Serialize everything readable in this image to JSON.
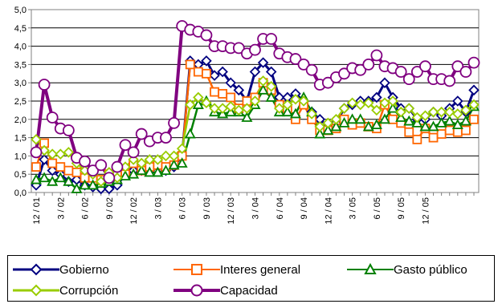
{
  "chart_data": {
    "type": "line",
    "title": "",
    "xlabel": "",
    "ylabel": "",
    "ylim": [
      0,
      5
    ],
    "yticks": [
      "0,0",
      "0,5",
      "1,0",
      "1,5",
      "2,0",
      "2,5",
      "3,0",
      "3,5",
      "4,0",
      "4,5",
      "5,0"
    ],
    "x_tick_labels": [
      "12 / 01",
      "3 / 02",
      "6 / 02",
      "9 / 02",
      "12 / 02",
      "3 / 03",
      "6 / 03",
      "9 / 03",
      "12 / 03",
      "3 / 04",
      "6 / 04",
      "9 / 04",
      "12 / 04",
      "3 / 05",
      "6 / 05",
      "9 / 05",
      "12 / 05"
    ],
    "grid": "horizontal",
    "legend_position": "bottom",
    "series": [
      {
        "name": "Gobierno",
        "color": "#000080",
        "marker": "diamond",
        "values": [
          0.2,
          0.9,
          0.6,
          0.5,
          0.3,
          0.35,
          0.2,
          0.15,
          0.1,
          0.1,
          0.2,
          0.5,
          0.6,
          0.6,
          0.6,
          0.7,
          0.6,
          0.7,
          1.0,
          3.6,
          3.5,
          3.6,
          3.2,
          3.3,
          3.0,
          2.8,
          2.5,
          3.3,
          3.55,
          3.3,
          2.6,
          2.6,
          2.7,
          2.5,
          2.2,
          2.0,
          1.8,
          1.9,
          2.3,
          2.4,
          2.5,
          2.5,
          2.6,
          3.0,
          2.6,
          2.3,
          2.3,
          2.0,
          2.0,
          2.2,
          2.1,
          2.3,
          2.5,
          2.2,
          2.8
        ]
      },
      {
        "name": "Interes general",
        "color": "#FF6600",
        "marker": "square",
        "values": [
          0.7,
          1.35,
          0.8,
          0.7,
          0.6,
          0.55,
          0.4,
          0.4,
          0.35,
          0.5,
          0.5,
          0.5,
          0.8,
          0.6,
          0.7,
          0.75,
          0.7,
          0.75,
          1.0,
          3.5,
          3.3,
          3.25,
          2.75,
          2.7,
          2.6,
          2.3,
          2.5,
          2.6,
          3.0,
          2.8,
          2.4,
          2.3,
          2.0,
          2.4,
          2.0,
          1.7,
          1.7,
          1.75,
          2.0,
          1.85,
          1.9,
          1.8,
          1.75,
          2.4,
          2.0,
          1.9,
          1.65,
          1.45,
          1.75,
          1.5,
          1.6,
          1.7,
          1.65,
          1.7,
          2.0
        ]
      },
      {
        "name": "Gasto público",
        "color": "#008000",
        "marker": "triangle",
        "values": [
          0.35,
          0.4,
          0.3,
          0.4,
          0.3,
          0.1,
          0.2,
          0.2,
          0.25,
          0.3,
          0.35,
          0.45,
          0.5,
          0.6,
          0.55,
          0.55,
          0.6,
          0.75,
          0.8,
          1.6,
          2.4,
          2.5,
          2.2,
          2.15,
          2.2,
          2.2,
          2.05,
          2.4,
          2.8,
          2.6,
          2.2,
          2.2,
          2.15,
          2.6,
          2.2,
          1.6,
          1.7,
          1.8,
          1.9,
          2.0,
          2.0,
          1.8,
          1.85,
          2.0,
          2.3,
          2.05,
          1.95,
          1.9,
          1.8,
          1.8,
          1.9,
          1.95,
          1.85,
          1.95,
          2.35
        ]
      },
      {
        "name": "Corrupción",
        "color": "#99CC00",
        "marker": "diamond",
        "values": [
          1.45,
          1.15,
          1.05,
          1.05,
          1.1,
          0.8,
          0.6,
          0.5,
          0.3,
          0.55,
          0.4,
          0.7,
          0.9,
          0.8,
          0.9,
          0.9,
          1.0,
          1.0,
          1.2,
          2.4,
          2.6,
          2.45,
          2.3,
          2.3,
          2.35,
          2.25,
          2.3,
          2.5,
          3.05,
          2.9,
          2.3,
          2.4,
          2.55,
          2.5,
          2.15,
          1.8,
          1.9,
          2.0,
          2.3,
          2.45,
          2.4,
          2.45,
          2.25,
          2.45,
          2.5,
          2.2,
          2.3,
          2.05,
          2.1,
          2.2,
          2.2,
          2.2,
          2.15,
          2.25,
          2.4
        ]
      },
      {
        "name": "Capacidad",
        "color": "#800080",
        "marker": "circle",
        "values": [
          1.1,
          2.95,
          2.05,
          1.75,
          1.7,
          0.95,
          0.85,
          0.6,
          0.75,
          0.4,
          0.7,
          1.3,
          1.1,
          1.6,
          1.4,
          1.5,
          1.5,
          1.9,
          4.55,
          4.45,
          4.4,
          4.3,
          4.0,
          4.0,
          3.95,
          3.95,
          3.8,
          3.9,
          4.2,
          4.2,
          3.8,
          3.7,
          3.65,
          3.5,
          3.35,
          2.95,
          3.0,
          3.15,
          3.25,
          3.4,
          3.35,
          3.5,
          3.75,
          3.45,
          3.4,
          3.3,
          3.1,
          3.3,
          3.45,
          3.1,
          3.1,
          3.05,
          3.45,
          3.3,
          3.55
        ]
      }
    ]
  }
}
